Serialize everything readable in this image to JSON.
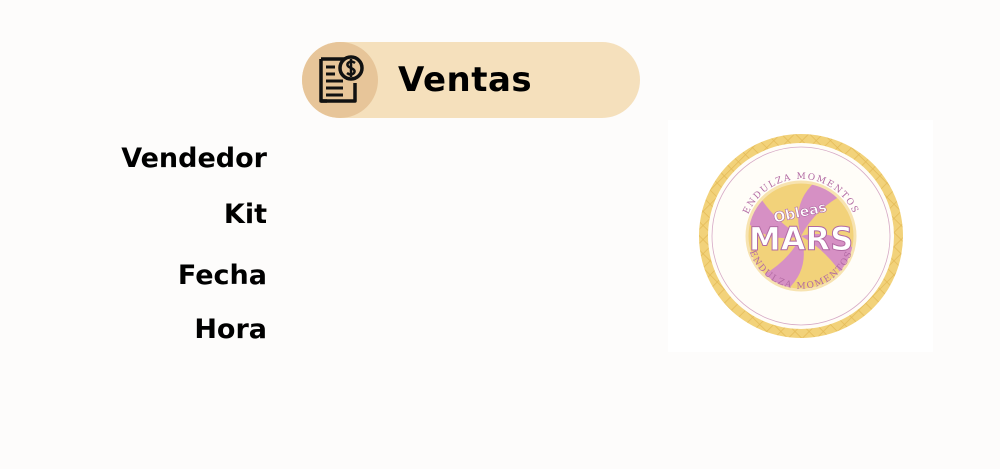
{
  "header": {
    "title": "Ventas",
    "icon": "invoice-dollar-icon"
  },
  "form": {
    "labels": [
      "Vendedor",
      "Kit",
      "Fecha",
      "Hora"
    ]
  },
  "logo": {
    "brand_top": "Obleas",
    "brand_main": "MARS",
    "ring_text_top": "ENDULZA MOMENTOS",
    "ring_text_bottom": "ENDULZA MOMENTOS"
  },
  "colors": {
    "background": "#fdfcfb",
    "pill": "#f5e0bc",
    "icon_circle": "#e7c599",
    "logo_gold": "#f0cd6d",
    "logo_pink": "#d690c4"
  }
}
